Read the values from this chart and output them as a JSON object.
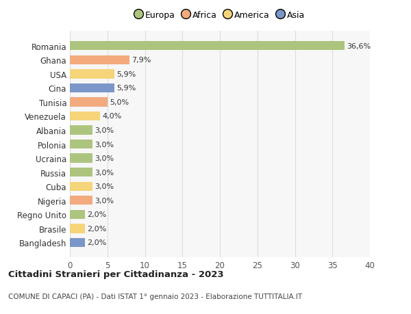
{
  "categories": [
    "Romania",
    "Ghana",
    "USA",
    "Cina",
    "Tunisia",
    "Venezuela",
    "Albania",
    "Polonia",
    "Ucraina",
    "Russia",
    "Cuba",
    "Nigeria",
    "Regno Unito",
    "Brasile",
    "Bangladesh"
  ],
  "values": [
    36.6,
    7.9,
    5.9,
    5.9,
    5.0,
    4.0,
    3.0,
    3.0,
    3.0,
    3.0,
    3.0,
    3.0,
    2.0,
    2.0,
    2.0
  ],
  "labels": [
    "36,6%",
    "7,9%",
    "5,9%",
    "5,9%",
    "5,0%",
    "4,0%",
    "3,0%",
    "3,0%",
    "3,0%",
    "3,0%",
    "3,0%",
    "3,0%",
    "2,0%",
    "2,0%",
    "2,0%"
  ],
  "bar_colors": [
    "#adc47e",
    "#f2aa7e",
    "#f5d47a",
    "#7b96c8",
    "#f2aa7e",
    "#f5d47a",
    "#adc47e",
    "#adc47e",
    "#adc47e",
    "#adc47e",
    "#f5d47a",
    "#f2aa7e",
    "#adc47e",
    "#f5d47a",
    "#7b96c8"
  ],
  "legend_labels": [
    "Europa",
    "Africa",
    "America",
    "Asia"
  ],
  "legend_colors": [
    "#adc47e",
    "#f2aa7e",
    "#f5d47a",
    "#7b96c8"
  ],
  "title": "Cittadini Stranieri per Cittadinanza - 2023",
  "subtitle": "COMUNE DI CAPACI (PA) - Dati ISTAT 1° gennaio 2023 - Elaborazione TUTTITALIA.IT",
  "xlim": [
    0,
    40
  ],
  "xticks": [
    0,
    5,
    10,
    15,
    20,
    25,
    30,
    35,
    40
  ],
  "background_color": "#ffffff",
  "plot_bg_color": "#f7f7f7",
  "grid_color": "#dddddd"
}
